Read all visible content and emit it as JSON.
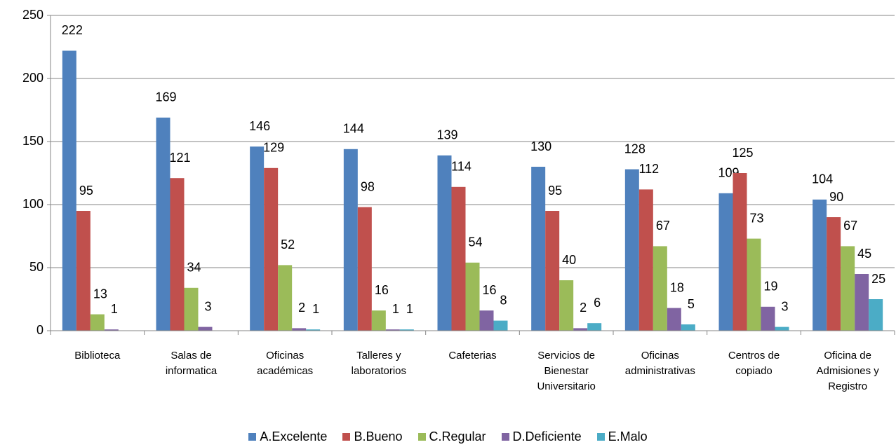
{
  "chart_data": {
    "type": "bar",
    "categories": [
      "Biblioteca",
      "Salas de informatica",
      "Oficinas académicas",
      "Talleres y laboratorios",
      "Cafeterias",
      "Servicios de Bienestar Universitario",
      "Oficinas administrativas",
      "Centros de copiado",
      "Oficina de Admisiones y Registro"
    ],
    "series": [
      {
        "name": "A.Excelente",
        "color": "#4F81BD",
        "values": [
          222,
          169,
          146,
          144,
          139,
          130,
          128,
          109,
          104
        ]
      },
      {
        "name": "B.Bueno",
        "color": "#C0504D",
        "values": [
          95,
          121,
          129,
          98,
          114,
          95,
          112,
          125,
          90
        ]
      },
      {
        "name": "C.Regular",
        "color": "#9BBB59",
        "values": [
          13,
          34,
          52,
          16,
          54,
          40,
          67,
          73,
          67
        ]
      },
      {
        "name": "D.Deficiente",
        "color": "#8064A2",
        "values": [
          1,
          3,
          2,
          1,
          16,
          2,
          18,
          19,
          45
        ]
      },
      {
        "name": "E.Malo",
        "color": "#4BACC6",
        "values": [
          null,
          null,
          1,
          1,
          8,
          6,
          5,
          3,
          25
        ]
      }
    ],
    "ylim": [
      0,
      250
    ],
    "yticks": [
      0,
      50,
      100,
      150,
      200,
      250
    ],
    "grid": true,
    "legend": "bottom"
  }
}
